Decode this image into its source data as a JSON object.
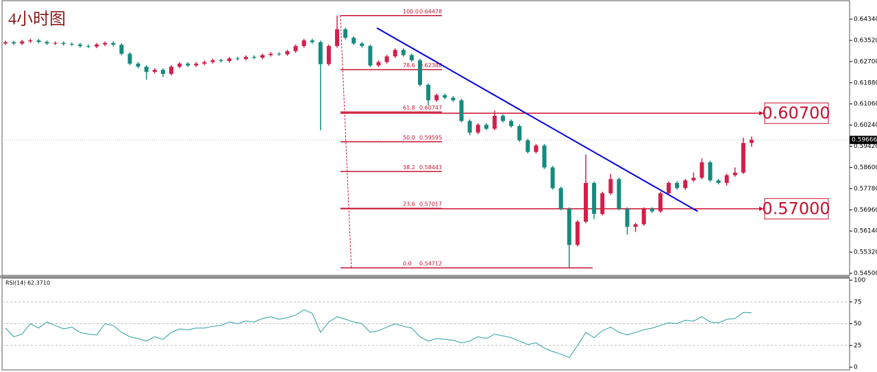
{
  "chart_data": [
    {
      "type": "candlestick",
      "title": "4小时图",
      "up_color": "#d21f4b",
      "down_color": "#168a7e",
      "ylim": [
        0.54394,
        0.65083
      ],
      "yticks": [
        {
          "value": 0.6434,
          "label": "0.64340"
        },
        {
          "value": 0.6352,
          "label": "0.63520"
        },
        {
          "value": 0.627,
          "label": "0.62700"
        },
        {
          "value": 0.6188,
          "label": "0.61880"
        },
        {
          "value": 0.6106,
          "label": "0.61060"
        },
        {
          "value": 0.6024,
          "label": "0.60240"
        },
        {
          "value": 0.5942,
          "label": "0.59420"
        },
        {
          "value": 0.586,
          "label": "0.58600"
        },
        {
          "value": 0.5778,
          "label": "0.57780"
        },
        {
          "value": 0.5696,
          "label": "0.56960"
        },
        {
          "value": 0.5614,
          "label": "0.56140"
        },
        {
          "value": 0.5532,
          "label": "0.55320"
        },
        {
          "value": 0.545,
          "label": "0.54500"
        }
      ],
      "current_price": 0.59666,
      "open": [
        0.634,
        0.6345,
        0.634,
        0.6348,
        0.6352,
        0.6346,
        0.634,
        0.6342,
        0.6338,
        0.6336,
        0.633,
        0.6328,
        0.6336,
        0.6342,
        0.6335,
        0.63,
        0.6262,
        0.625,
        0.623,
        0.6238,
        0.6222,
        0.625,
        0.6262,
        0.6255,
        0.6262,
        0.6268,
        0.6275,
        0.6272,
        0.6282,
        0.628,
        0.6288,
        0.6285,
        0.6295,
        0.63,
        0.6298,
        0.631,
        0.633,
        0.6352,
        0.6345,
        0.626,
        0.633,
        0.6395,
        0.6362,
        0.634,
        0.633,
        0.6255,
        0.6268,
        0.629,
        0.6315,
        0.6295,
        0.6275,
        0.618,
        0.612,
        0.614,
        0.613,
        0.612,
        0.604,
        0.5995,
        0.6025,
        0.601,
        0.606,
        0.604,
        0.602,
        0.5965,
        0.592,
        0.5945,
        0.586,
        0.578,
        0.57,
        0.556,
        0.565,
        0.58,
        0.568,
        0.576,
        0.5815,
        0.57,
        0.563,
        0.564,
        0.57,
        0.569,
        0.576,
        0.58,
        0.578,
        0.581,
        0.582,
        0.588,
        0.581,
        0.58,
        0.583,
        0.584,
        0.5955
      ],
      "high": [
        0.6351,
        0.6351,
        0.6354,
        0.6358,
        0.6358,
        0.6352,
        0.6348,
        0.6348,
        0.6344,
        0.6342,
        0.6336,
        0.6342,
        0.6348,
        0.6348,
        0.6341,
        0.6306,
        0.6268,
        0.6256,
        0.6244,
        0.6244,
        0.6256,
        0.6268,
        0.6268,
        0.6268,
        0.6274,
        0.6281,
        0.6281,
        0.6288,
        0.6288,
        0.6294,
        0.6294,
        0.6301,
        0.6306,
        0.6306,
        0.6316,
        0.6336,
        0.6358,
        0.6358,
        0.6351,
        0.6336,
        0.64478,
        0.6401,
        0.6368,
        0.6346,
        0.6336,
        0.6274,
        0.6296,
        0.6321,
        0.6321,
        0.6301,
        0.6281,
        0.6186,
        0.6146,
        0.6146,
        0.6136,
        0.6126,
        0.6046,
        0.6031,
        0.6031,
        0.608,
        0.6066,
        0.6046,
        0.6026,
        0.5971,
        0.5951,
        0.5951,
        0.5866,
        0.5786,
        0.5706,
        0.5656,
        0.591,
        0.5806,
        0.5766,
        0.5835,
        0.5821,
        0.5706,
        0.5646,
        0.5706,
        0.5706,
        0.5766,
        0.5806,
        0.5806,
        0.5816,
        0.584,
        0.5895,
        0.5886,
        0.5816,
        0.5836,
        0.586,
        0.5975,
        0.598
      ],
      "low": [
        0.6334,
        0.6334,
        0.6334,
        0.6342,
        0.634,
        0.6334,
        0.6334,
        0.6332,
        0.633,
        0.6324,
        0.6322,
        0.6322,
        0.633,
        0.6329,
        0.6294,
        0.6256,
        0.6244,
        0.62,
        0.6224,
        0.621,
        0.6216,
        0.6244,
        0.6249,
        0.6249,
        0.6256,
        0.6262,
        0.6266,
        0.6266,
        0.6274,
        0.6274,
        0.6279,
        0.6279,
        0.6289,
        0.6292,
        0.6292,
        0.6304,
        0.6324,
        0.6339,
        0.6004,
        0.6254,
        0.6324,
        0.6356,
        0.6334,
        0.6324,
        0.6249,
        0.6249,
        0.6262,
        0.6284,
        0.6289,
        0.6269,
        0.6174,
        0.61,
        0.6114,
        0.6124,
        0.6114,
        0.6034,
        0.5985,
        0.5989,
        0.6004,
        0.6004,
        0.6034,
        0.6014,
        0.5959,
        0.5914,
        0.5914,
        0.5854,
        0.5774,
        0.5694,
        0.54712,
        0.5554,
        0.5644,
        0.566,
        0.5674,
        0.5754,
        0.5694,
        0.56,
        0.561,
        0.5634,
        0.5684,
        0.5684,
        0.5754,
        0.5774,
        0.5774,
        0.5804,
        0.5814,
        0.5804,
        0.5794,
        0.579,
        0.5824,
        0.5834,
        0.594
      ],
      "close": [
        0.6345,
        0.634,
        0.6348,
        0.6352,
        0.6346,
        0.634,
        0.6342,
        0.6338,
        0.6336,
        0.633,
        0.6328,
        0.6336,
        0.6342,
        0.6335,
        0.63,
        0.6262,
        0.625,
        0.623,
        0.6238,
        0.6222,
        0.625,
        0.6262,
        0.6255,
        0.6262,
        0.6268,
        0.6275,
        0.6272,
        0.6282,
        0.628,
        0.6288,
        0.6285,
        0.6295,
        0.63,
        0.6298,
        0.631,
        0.633,
        0.6352,
        0.6345,
        0.626,
        0.633,
        0.6395,
        0.6362,
        0.634,
        0.633,
        0.6255,
        0.6268,
        0.629,
        0.6315,
        0.6295,
        0.6275,
        0.618,
        0.612,
        0.614,
        0.613,
        0.612,
        0.604,
        0.5995,
        0.6025,
        0.601,
        0.606,
        0.604,
        0.602,
        0.5965,
        0.592,
        0.5945,
        0.586,
        0.578,
        0.57,
        0.556,
        0.565,
        0.58,
        0.568,
        0.576,
        0.5815,
        0.57,
        0.563,
        0.564,
        0.57,
        0.569,
        0.576,
        0.58,
        0.578,
        0.581,
        0.582,
        0.588,
        0.581,
        0.58,
        0.583,
        0.584,
        0.5955,
        0.5967
      ],
      "fib_color": "#c8102e",
      "fibonacci": [
        {
          "level": "100.0",
          "price": 0.64478
        },
        {
          "level": "78.6",
          "price": 0.62388
        },
        {
          "level": "61.8",
          "price": 0.60747
        },
        {
          "level": "50.0",
          "price": 0.59595
        },
        {
          "level": "38.2",
          "price": 0.58443
        },
        {
          "level": "23.6",
          "price": 0.57017
        },
        {
          "level": "0.0",
          "price": 0.54712
        }
      ],
      "key_levels": [
        {
          "value": 0.607,
          "label": "0.60700"
        },
        {
          "value": 0.57,
          "label": "0.57000"
        }
      ],
      "trendline": {
        "color": "#0000e0",
        "x": [
          44.8,
          83.5
        ],
        "y": [
          0.64,
          0.569
        ]
      }
    },
    {
      "type": "line",
      "title": "RSI(14) 62.3710",
      "color": "#2a9d9d",
      "ylim": [
        0,
        100
      ],
      "yticks": [
        0,
        25,
        50,
        75,
        100
      ],
      "grid_ticks": [
        25,
        50,
        75
      ],
      "values": [
        45,
        35,
        38,
        50,
        45,
        52,
        48,
        44,
        46,
        40,
        38,
        37,
        50,
        48,
        40,
        35,
        33,
        30,
        35,
        32,
        40,
        44,
        43,
        45,
        45,
        47,
        48,
        52,
        50,
        53,
        52,
        56,
        58,
        55,
        57,
        60,
        66,
        62,
        40,
        52,
        58,
        55,
        52,
        50,
        40,
        42,
        46,
        50,
        47,
        45,
        35,
        30,
        33,
        32,
        31,
        28,
        30,
        35,
        33,
        38,
        36,
        34,
        30,
        26,
        28,
        22,
        18,
        15,
        11,
        25,
        40,
        34,
        42,
        46,
        40,
        37,
        40,
        43,
        45,
        48,
        51,
        50,
        54,
        53,
        58,
        52,
        51,
        55,
        56,
        63,
        62.371
      ]
    }
  ]
}
